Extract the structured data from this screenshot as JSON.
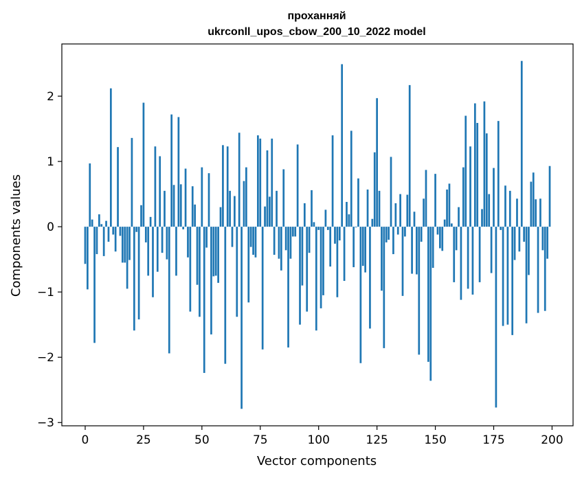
{
  "chart_data": {
    "type": "bar",
    "title": "проханняй",
    "subtitle": "ukrconll_upos_cbow_200_10_2022 model",
    "xlabel": "Vector components",
    "ylabel": "Components values",
    "xlim": [
      -10,
      209
    ],
    "ylim": [
      -3.05,
      2.8
    ],
    "xticks": [
      0,
      25,
      50,
      75,
      100,
      125,
      150,
      175,
      200
    ],
    "yticks": [
      -3,
      -2,
      -1,
      0,
      1,
      2
    ],
    "bar_color": "#1f77b4",
    "grid": false,
    "values": [
      -0.57,
      -0.96,
      0.97,
      0.11,
      -1.78,
      -0.42,
      0.19,
      0.04,
      -0.45,
      0.09,
      -0.23,
      2.12,
      -0.12,
      -0.38,
      1.22,
      -0.14,
      -0.55,
      -0.55,
      -0.95,
      -0.51,
      1.36,
      -1.59,
      -0.08,
      -1.42,
      0.33,
      1.9,
      -0.24,
      -0.75,
      0.15,
      -1.08,
      1.23,
      -0.69,
      1.08,
      -0.4,
      0.55,
      -0.5,
      -1.94,
      1.72,
      0.64,
      -0.75,
      1.68,
      0.65,
      -0.04,
      0.89,
      -0.47,
      -1.3,
      0.62,
      0.34,
      -0.89,
      -1.38,
      0.91,
      -2.24,
      -0.32,
      0.82,
      -1.65,
      -0.76,
      -0.75,
      -0.86,
      0.3,
      1.25,
      -2.1,
      1.23,
      0.55,
      -0.31,
      0.47,
      -1.38,
      1.44,
      -2.79,
      0.7,
      0.91,
      -1.16,
      -0.31,
      -0.43,
      -0.47,
      1.4,
      1.35,
      -1.88,
      0.31,
      1.17,
      0.46,
      1.35,
      -0.43,
      0.55,
      -0.49,
      -0.67,
      0.88,
      -0.36,
      -1.85,
      -0.49,
      -0.15,
      -0.15,
      1.26,
      -1.5,
      -0.9,
      0.36,
      -1.3,
      -0.4,
      0.56,
      0.07,
      -1.59,
      -0.05,
      -1.25,
      -1.05,
      0.26,
      -0.05,
      -0.61,
      1.4,
      -0.26,
      -1.08,
      -0.21,
      2.49,
      -0.83,
      0.38,
      0.19,
      1.47,
      -0.62,
      -0.01,
      0.74,
      -2.09,
      -0.6,
      -0.7,
      0.57,
      -1.56,
      0.12,
      1.14,
      1.97,
      0.55,
      -0.98,
      -1.86,
      -0.24,
      -0.2,
      1.07,
      -0.42,
      0.36,
      -0.12,
      0.5,
      -1.06,
      -0.15,
      0.49,
      2.17,
      -0.72,
      0.23,
      -0.73,
      -1.96,
      -0.23,
      0.43,
      0.87,
      -2.07,
      -2.36,
      -0.63,
      0.81,
      -0.12,
      -0.33,
      -0.37,
      0.11,
      0.57,
      0.66,
      0.05,
      -0.85,
      -0.36,
      0.3,
      -1.12,
      0.91,
      1.7,
      -0.95,
      1.23,
      -1.04,
      1.89,
      1.59,
      -0.85,
      0.27,
      1.92,
      1.43,
      0.5,
      -0.71,
      0.9,
      -2.77,
      1.62,
      -0.05,
      -1.52,
      0.63,
      -1.5,
      0.55,
      -1.66,
      -0.51,
      0.43,
      -0.38,
      2.54,
      -0.23,
      -1.48,
      -0.74,
      0.69,
      0.83,
      0.42,
      -1.32,
      0.43,
      -0.36,
      -1.29,
      -0.49,
      0.93
    ]
  }
}
